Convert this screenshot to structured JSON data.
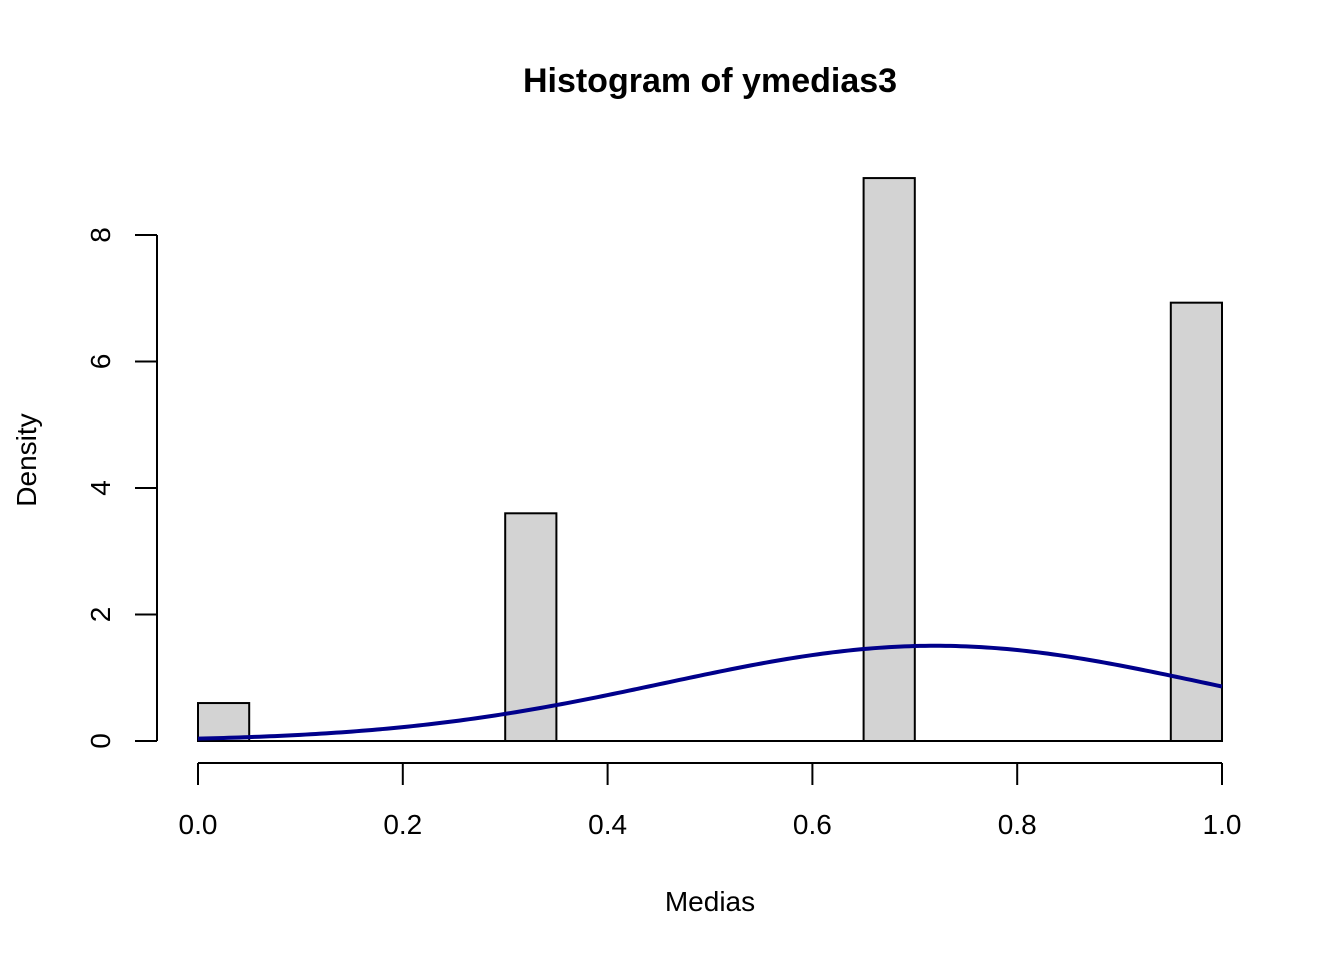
{
  "chart_data": {
    "type": "bar",
    "title": "Histogram of ymedias3",
    "xlabel": "Medias",
    "ylabel": "Density",
    "xlim": [
      0,
      1
    ],
    "ylim": [
      0,
      9
    ],
    "x_ticks": [
      "0.0",
      "0.2",
      "0.4",
      "0.6",
      "0.8",
      "1.0"
    ],
    "y_ticks": [
      "0",
      "2",
      "4",
      "6",
      "8"
    ],
    "grid": false,
    "bins": [
      {
        "from": 0.0,
        "to": 0.05,
        "density": 0.6
      },
      {
        "from": 0.3,
        "to": 0.35,
        "density": 3.6
      },
      {
        "from": 0.65,
        "to": 0.7,
        "density": 8.9
      },
      {
        "from": 0.95,
        "to": 1.0,
        "density": 6.93
      }
    ],
    "bar_color": "#d3d3d3",
    "bar_border_color": "#000000",
    "density_curve": {
      "color": "#00008b",
      "mean": 0.72,
      "sd": 0.265,
      "x_range": [
        0,
        1
      ]
    }
  }
}
